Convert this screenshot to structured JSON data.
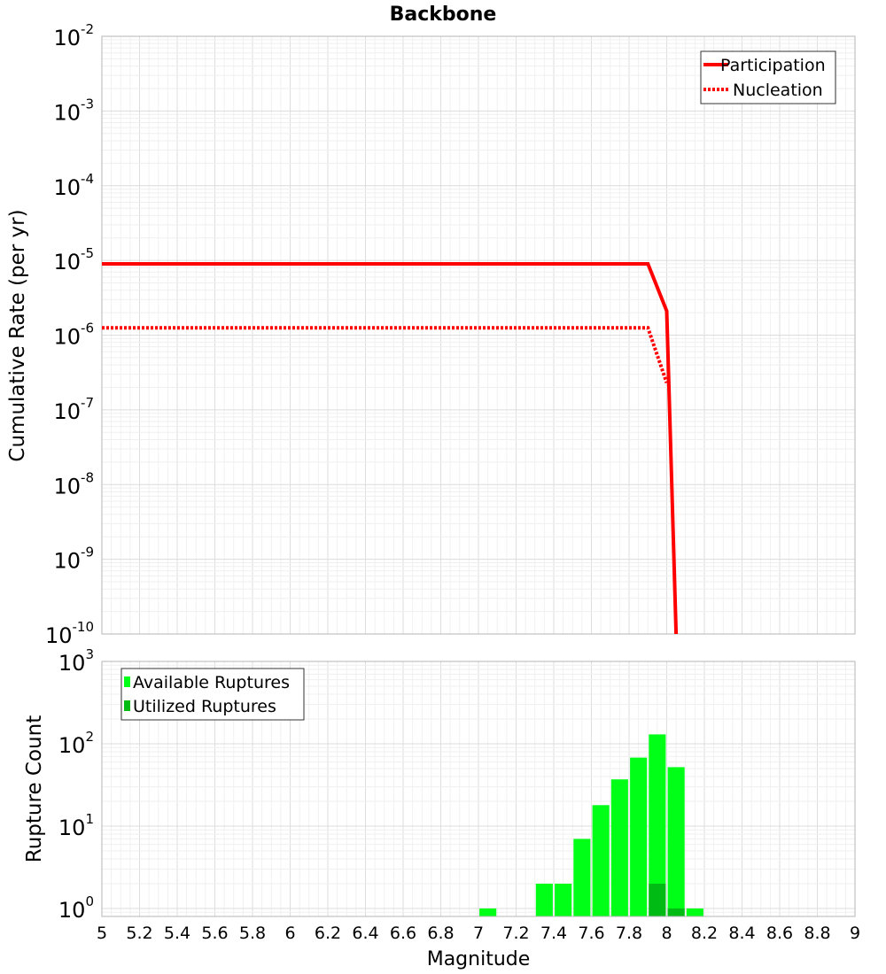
{
  "chart_data": [
    {
      "type": "line",
      "title": "Backbone",
      "xlabel": "",
      "ylabel": "Cumulative Rate (per yr)",
      "yscale": "log",
      "ylim": [
        1e-10,
        0.01
      ],
      "xlim": [
        5,
        9
      ],
      "y_tick_labels": [
        {
          "value": 0.01,
          "base": "10",
          "exp": "-2"
        },
        {
          "value": 0.001,
          "base": "10",
          "exp": "-3"
        },
        {
          "value": 0.0001,
          "base": "10",
          "exp": "-4"
        },
        {
          "value": 1e-05,
          "base": "10",
          "exp": "-5"
        },
        {
          "value": 1e-06,
          "base": "10",
          "exp": "-6"
        },
        {
          "value": 1e-07,
          "base": "10",
          "exp": "-7"
        },
        {
          "value": 1e-08,
          "base": "10",
          "exp": "-8"
        },
        {
          "value": 1e-09,
          "base": "10",
          "exp": "-9"
        },
        {
          "value": 1e-10,
          "base": "10",
          "exp": "-10"
        }
      ],
      "legend": {
        "position": "top-right",
        "entries": [
          "Participation",
          "Nucleation"
        ]
      },
      "series": [
        {
          "name": "Participation",
          "style": "solid",
          "color": "#ff0000",
          "x": [
            5,
            7.9,
            8.0,
            8.05
          ],
          "y": [
            9e-06,
            9e-06,
            2.1e-06,
            1e-10
          ]
        },
        {
          "name": "Nucleation",
          "style": "dotted",
          "color": "#ff0000",
          "x": [
            5,
            7.9,
            8.0
          ],
          "y": [
            1.25e-06,
            1.25e-06,
            2.3e-07
          ]
        }
      ]
    },
    {
      "type": "bar",
      "title": "",
      "xlabel": "Magnitude",
      "ylabel": "Rupture Count",
      "yscale": "log",
      "ylim": [
        0.8,
        1000
      ],
      "xlim": [
        5,
        9
      ],
      "x_ticks": [
        "5",
        "5.2",
        "5.4",
        "5.6",
        "5.8",
        "6",
        "6.2",
        "6.4",
        "6.6",
        "6.8",
        "7",
        "7.2",
        "7.4",
        "7.6",
        "7.8",
        "8",
        "8.2",
        "8.4",
        "8.6",
        "8.8",
        "9"
      ],
      "y_tick_labels": [
        {
          "value": 1000,
          "base": "10",
          "exp": "3"
        },
        {
          "value": 100,
          "base": "10",
          "exp": "2"
        },
        {
          "value": 10,
          "base": "10",
          "exp": "1"
        },
        {
          "value": 1,
          "base": "10",
          "exp": "0"
        }
      ],
      "legend": {
        "position": "top-left",
        "entries": [
          "Available Ruptures",
          "Utilized Ruptures"
        ]
      },
      "bar_width": 0.09,
      "series": [
        {
          "name": "Available Ruptures",
          "color": "#00ff17",
          "x": [
            7.05,
            7.35,
            7.45,
            7.55,
            7.65,
            7.75,
            7.85,
            7.95,
            8.05,
            8.15
          ],
          "values": [
            1,
            2,
            2,
            7,
            18,
            37,
            68,
            130,
            52,
            1
          ]
        },
        {
          "name": "Utilized Ruptures",
          "color": "#00bb14",
          "x": [
            7.95,
            8.05
          ],
          "values": [
            2,
            1
          ]
        }
      ]
    }
  ]
}
